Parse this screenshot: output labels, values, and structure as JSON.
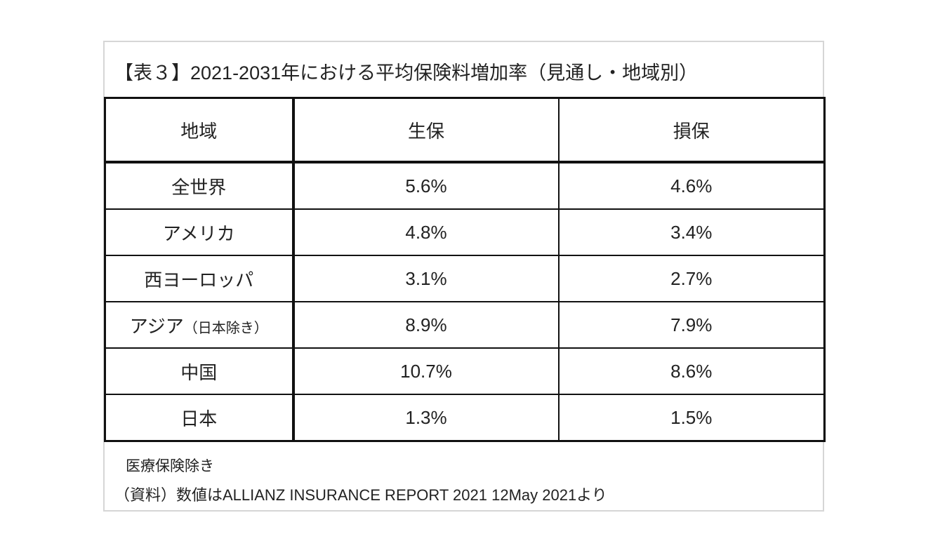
{
  "title": "【表３】2021-2031年における平均保険料増加率（見通し・地域別）",
  "table": {
    "header": [
      "地域",
      "生保",
      "損保"
    ],
    "rows": [
      {
        "region": "全世界",
        "life": "5.6%",
        "nonlife": "4.6%"
      },
      {
        "region": "アメリカ",
        "life": "4.8%",
        "nonlife": "3.4%"
      },
      {
        "region": "西ヨーロッパ",
        "life": "3.1%",
        "nonlife": "2.7%"
      },
      {
        "region": "アジア",
        "region_note": "（日本除き）",
        "life": "8.9%",
        "nonlife": "7.9%"
      },
      {
        "region": "中国",
        "life": "10.7%",
        "nonlife": "8.6%"
      },
      {
        "region": "日本",
        "life": "1.3%",
        "nonlife": "1.5%"
      }
    ]
  },
  "note": "医療保険除き",
  "source": "（資料）数値はALLIANZ INSURANCE REPORT 2021  12May 2021より"
}
